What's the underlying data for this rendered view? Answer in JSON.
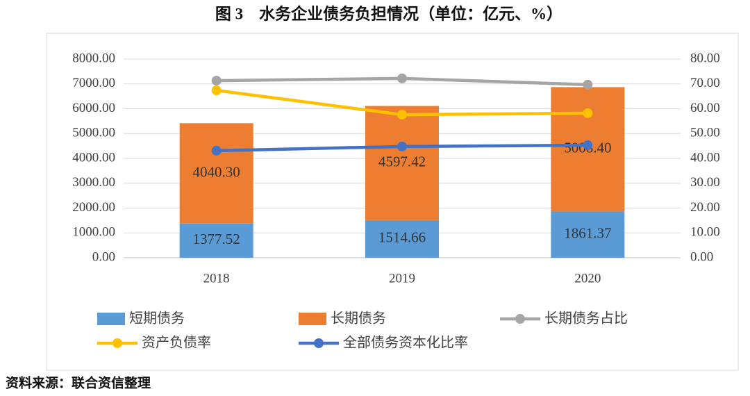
{
  "chart_data": {
    "type": "bar",
    "stacked": true,
    "title": "图 3　水务企业债务负担情况（单位：亿元、%）",
    "source": "资料来源：联合资信整理",
    "categories": [
      "2018",
      "2019",
      "2020"
    ],
    "ylim": [
      0,
      8000
    ],
    "yticks": [
      {
        "value": 0,
        "label": "0.00"
      },
      {
        "value": 1000,
        "label": "1000.00"
      },
      {
        "value": 2000,
        "label": "2000.00"
      },
      {
        "value": 3000,
        "label": "3000.00"
      },
      {
        "value": 4000,
        "label": "4000.00"
      },
      {
        "value": 5000,
        "label": "5000.00"
      },
      {
        "value": 6000,
        "label": "6000.00"
      },
      {
        "value": 7000,
        "label": "7000.00"
      },
      {
        "value": 8000,
        "label": "8000.00"
      }
    ],
    "y2lim": [
      0,
      80
    ],
    "y2ticks": [
      {
        "value": 0,
        "label": "0.00"
      },
      {
        "value": 10,
        "label": "10.00"
      },
      {
        "value": 20,
        "label": "20.00"
      },
      {
        "value": 30,
        "label": "30.00"
      },
      {
        "value": 40,
        "label": "40.00"
      },
      {
        "value": 50,
        "label": "50.00"
      },
      {
        "value": 60,
        "label": "60.00"
      },
      {
        "value": 70,
        "label": "70.00"
      },
      {
        "value": 80,
        "label": "80.00"
      }
    ],
    "grid": true,
    "series": [
      {
        "name": "短期债务",
        "type": "bar",
        "color": "#5b9bd5",
        "values": [
          1377.52,
          1514.66,
          1861.37
        ],
        "value_labels": [
          "1377.52",
          "1514.66",
          "1861.37"
        ]
      },
      {
        "name": "长期债务",
        "type": "bar",
        "color": "#ed7d31",
        "values": [
          4040.3,
          4597.42,
          5008.4
        ],
        "value_labels": [
          "4040.30",
          "4597.42",
          "5008.40"
        ]
      },
      {
        "name": "长期债务占比",
        "type": "line",
        "axis": "y2",
        "color": "#a5a5a5",
        "values": [
          71.3,
          72.2,
          69.7
        ]
      },
      {
        "name": "资产负债率",
        "type": "line",
        "axis": "y2",
        "color": "#ffc000",
        "values": [
          67.4,
          57.6,
          58.2
        ]
      },
      {
        "name": "全部债务资本化比率",
        "type": "line",
        "axis": "y2",
        "color": "#4472c4",
        "values": [
          43.1,
          44.8,
          45.3
        ]
      }
    ]
  }
}
